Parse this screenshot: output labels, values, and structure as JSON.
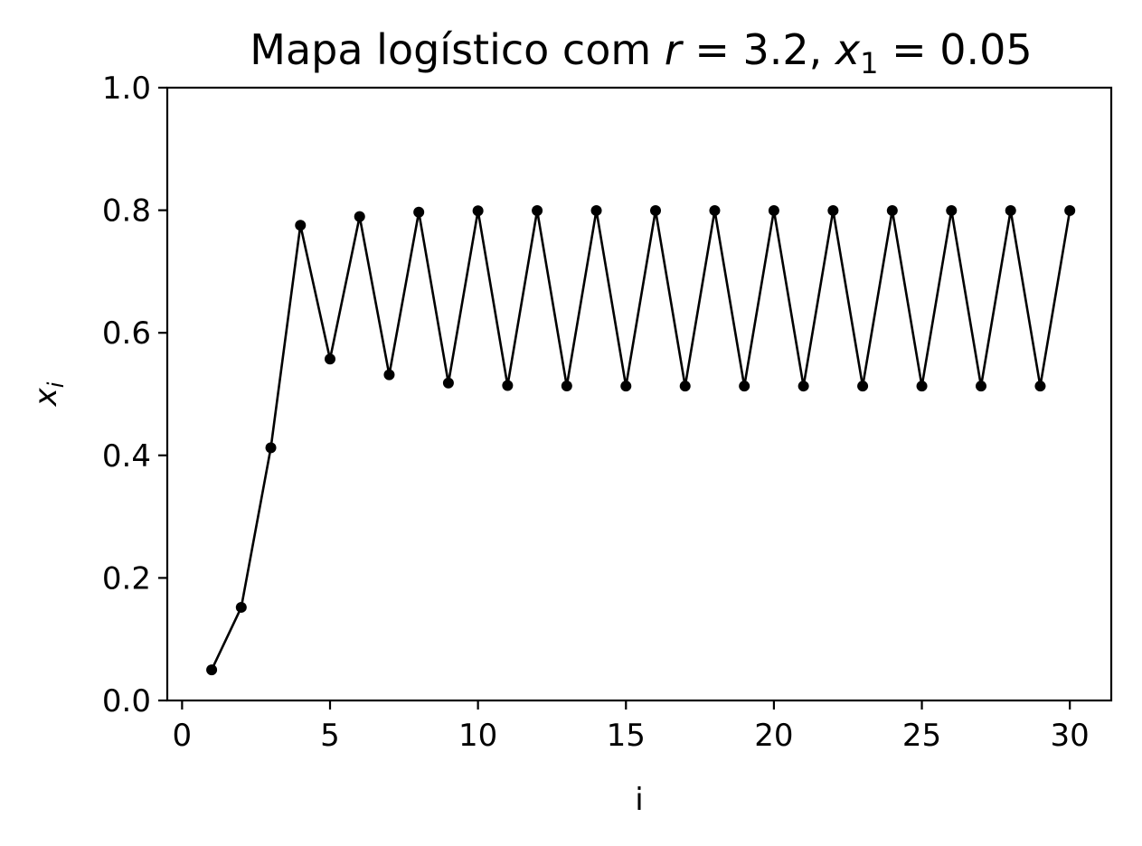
{
  "chart_data": {
    "type": "line",
    "title": {
      "prefix": "Mapa logístico com ",
      "r_symbol": "r",
      "r_value": " = 3.2, ",
      "x_symbol": "x",
      "x_sub": "1",
      "x_value": " = 0.05"
    },
    "xlabel": "i",
    "ylabel": {
      "symbol": "x",
      "sub": "i"
    },
    "xlim": [
      -0.5,
      31.4
    ],
    "ylim": [
      0.0,
      1.0
    ],
    "xticks": [
      0,
      5,
      10,
      15,
      20,
      25,
      30
    ],
    "yticks": [
      0.0,
      0.2,
      0.4,
      0.6,
      0.8,
      1.0
    ],
    "ytick_labels": [
      "0.0",
      "0.2",
      "0.4",
      "0.6",
      "0.8",
      "1.0"
    ],
    "grid": false,
    "legend": false,
    "colors": {
      "line": "#000000",
      "marker": "#000000"
    },
    "series": [
      {
        "x": [
          1,
          2,
          3,
          4,
          5,
          6,
          7,
          8,
          9,
          10,
          11,
          12,
          13,
          14,
          15,
          16,
          17,
          18,
          19,
          20,
          21,
          22,
          23,
          24,
          25,
          26,
          27,
          28,
          29,
          30
        ],
        "y": [
          0.05,
          0.152,
          0.4125,
          0.7755,
          0.5571,
          0.7896,
          0.5316,
          0.7968,
          0.5181,
          0.799,
          0.514,
          0.7994,
          0.5132,
          0.7995,
          0.513,
          0.7995,
          0.513,
          0.7995,
          0.513,
          0.7995,
          0.513,
          0.7995,
          0.513,
          0.7995,
          0.513,
          0.7995,
          0.513,
          0.7995,
          0.513,
          0.7995
        ]
      }
    ]
  }
}
